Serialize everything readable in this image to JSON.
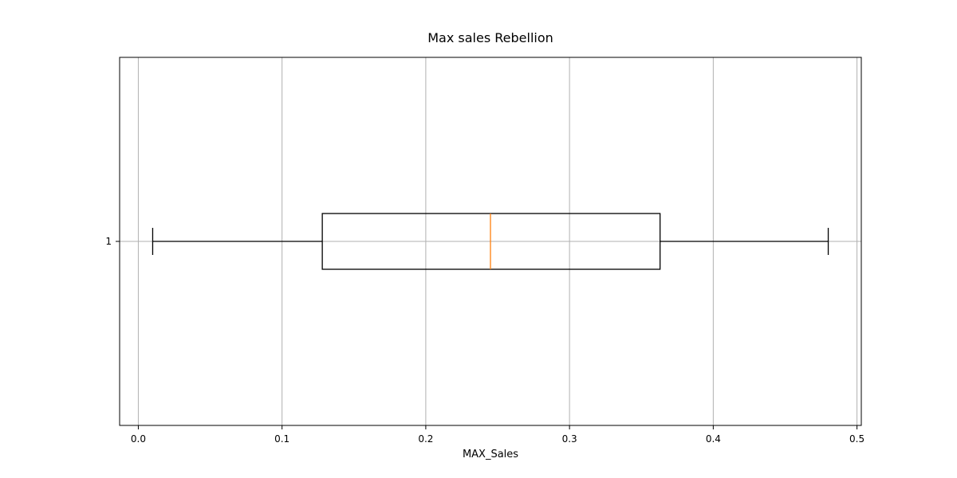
{
  "chart_data": {
    "type": "boxplot",
    "orientation": "horizontal",
    "title": "Max sales Rebellion",
    "xlabel": "MAX_Sales",
    "ylabel": "",
    "xlim": [
      -0.013,
      0.503
    ],
    "xticks": [
      0.0,
      0.1,
      0.2,
      0.3,
      0.4,
      0.5
    ],
    "xtick_labels": [
      "0.0",
      "0.1",
      "0.2",
      "0.3",
      "0.4",
      "0.5"
    ],
    "categories": [
      "1"
    ],
    "boxes": [
      {
        "category": "1",
        "whisker_low": 0.01,
        "q1": 0.128,
        "median": 0.245,
        "q3": 0.363,
        "whisker_high": 0.48
      }
    ],
    "grid": true,
    "colors": {
      "box": "#000000",
      "median": "#ff7f0e",
      "grid": "#b0b0b0",
      "axes": "#000000"
    }
  }
}
